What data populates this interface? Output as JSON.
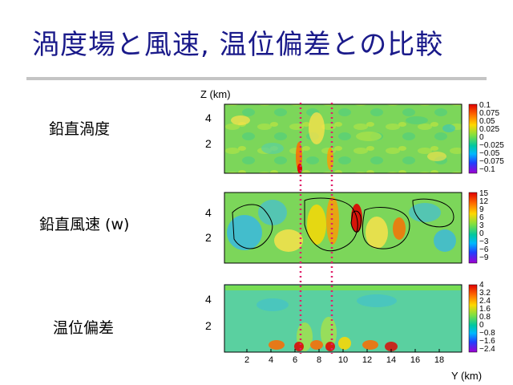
{
  "slide": {
    "title": "渦度場と風速, 温位偏差との比較"
  },
  "rows": [
    {
      "label": "鉛直渦度",
      "z_ticks": [
        "4",
        "2"
      ],
      "colorbar_ticks": [
        "0.1",
        "0.075",
        "0.05",
        "0.025",
        "0",
        "−0.025",
        "−0.05",
        "−0.075",
        "−0.1"
      ]
    },
    {
      "label": "鉛直風速 (w)",
      "z_ticks": [
        "4",
        "2"
      ],
      "colorbar_ticks": [
        "15",
        "12",
        "9",
        "6",
        "3",
        "0",
        "−3",
        "−6",
        "−9"
      ]
    },
    {
      "label": "温位偏差",
      "z_ticks": [
        "4",
        "2"
      ],
      "colorbar_ticks": [
        "4",
        "3.2",
        "2.4",
        "1.6",
        "0.8",
        "0",
        "−0.8",
        "−1.6",
        "−2.4"
      ]
    }
  ],
  "axes": {
    "z_label": "Z (km)",
    "y_label": "Y (km)",
    "y_ticks": [
      "2",
      "4",
      "6",
      "8",
      "10",
      "12",
      "14",
      "16",
      "18"
    ]
  },
  "colors": {
    "title": "#1a1a8a",
    "rule": "#c4c4c4",
    "marker_line": "#e0206a",
    "field_background": "#7cd65a"
  }
}
